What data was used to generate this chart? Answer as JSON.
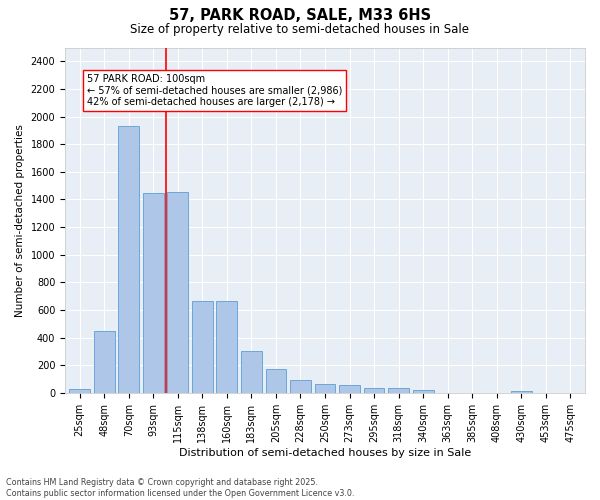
{
  "title": "57, PARK ROAD, SALE, M33 6HS",
  "subtitle": "Size of property relative to semi-detached houses in Sale",
  "xlabel": "Distribution of semi-detached houses by size in Sale",
  "ylabel": "Number of semi-detached properties",
  "categories": [
    "25sqm",
    "48sqm",
    "70sqm",
    "93sqm",
    "115sqm",
    "138sqm",
    "160sqm",
    "183sqm",
    "205sqm",
    "228sqm",
    "250sqm",
    "273sqm",
    "295sqm",
    "318sqm",
    "340sqm",
    "363sqm",
    "385sqm",
    "408sqm",
    "430sqm",
    "453sqm",
    "475sqm"
  ],
  "values": [
    25,
    450,
    1935,
    1450,
    1455,
    665,
    665,
    305,
    175,
    95,
    65,
    60,
    38,
    38,
    20,
    0,
    0,
    0,
    15,
    0,
    0
  ],
  "bar_color": "#aec6e8",
  "bar_edge_color": "#5a9fd4",
  "vline_x": 3.5,
  "vline_color": "red",
  "annotation_label": "57 PARK ROAD: 100sqm",
  "annotation_line1": "← 57% of semi-detached houses are smaller (2,986)",
  "annotation_line2": "42% of semi-detached houses are larger (2,178) →",
  "ylim": [
    0,
    2500
  ],
  "yticks": [
    0,
    200,
    400,
    600,
    800,
    1000,
    1200,
    1400,
    1600,
    1800,
    2000,
    2200,
    2400
  ],
  "bg_color": "#e8eef5",
  "footnote1": "Contains HM Land Registry data © Crown copyright and database right 2025.",
  "footnote2": "Contains public sector information licensed under the Open Government Licence v3.0."
}
